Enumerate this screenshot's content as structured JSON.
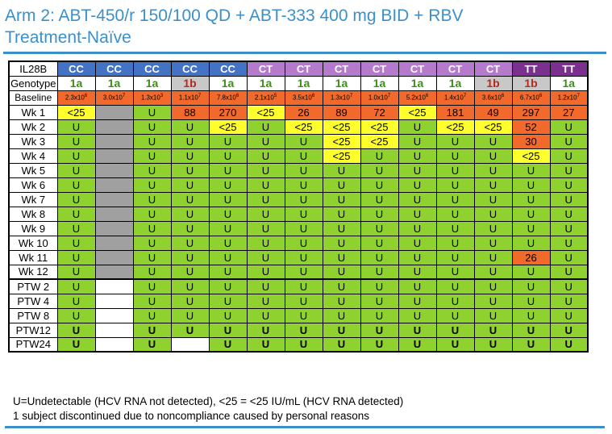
{
  "title": {
    "line1": "Arm 2: ABT-450/r 150/100 QD + ABT-333 400 mg BID + RBV",
    "line2": "Treatment-Naïve"
  },
  "colors": {
    "title_blue": "#3d8fc9",
    "cc_header": "#4472c4",
    "ct_header": "#b57acb",
    "tt_header": "#7b2f8f",
    "undetectable_green": "#8fd12e",
    "detected_yellow": "#ffff2e",
    "quantifiable_orange": "#f26a2b",
    "missing_gray": "#a0a0a0"
  },
  "table": {
    "header_rows": [
      {
        "label": "IL28B",
        "values": [
          "CC",
          "CC",
          "CC",
          "CC",
          "CC",
          "CT",
          "CT",
          "CT",
          "CT",
          "CT",
          "CT",
          "CT",
          "TT",
          "TT"
        ]
      },
      {
        "label": "Genotype",
        "values": [
          "1a",
          "1a",
          "1a",
          "1b",
          "1a",
          "1a",
          "1a",
          "1a",
          "1a",
          "1a",
          "1a",
          "1b",
          "1b",
          "1a"
        ]
      },
      {
        "label": "Baseline",
        "values": [
          {
            "m": "2.3x10",
            "e": "6"
          },
          {
            "m": "3.0x10",
            "e": "7"
          },
          {
            "m": "1.3x10",
            "e": "3"
          },
          {
            "m": "1.1x10",
            "e": "7"
          },
          {
            "m": "7.8x10",
            "e": "6"
          },
          {
            "m": "2.1x10",
            "e": "5"
          },
          {
            "m": "3.5x10",
            "e": "6"
          },
          {
            "m": "1.3x10",
            "e": "7"
          },
          {
            "m": "1.0x10",
            "e": "7"
          },
          {
            "m": "5.2x10",
            "e": "6"
          },
          {
            "m": "1.4x10",
            "e": "7"
          },
          {
            "m": "3.6x10",
            "e": "6"
          },
          {
            "m": "6.7x10",
            "e": "6"
          },
          {
            "m": "1.2x10",
            "e": "7"
          }
        ]
      }
    ],
    "rows": [
      {
        "label": "Wk 1",
        "values": [
          "<25",
          "",
          "U",
          "88",
          "270",
          "<25",
          "26",
          "89",
          "72",
          "<25",
          "181",
          "49",
          "297",
          "27"
        ]
      },
      {
        "label": "Wk 2",
        "values": [
          "U",
          "",
          "U",
          "U",
          "<25",
          "U",
          "<25",
          "<25",
          "<25",
          "U",
          "<25",
          "<25",
          "52",
          "U"
        ]
      },
      {
        "label": "Wk 3",
        "values": [
          "U",
          "",
          "U",
          "U",
          "U",
          "U",
          "U",
          "<25",
          "<25",
          "U",
          "U",
          "U",
          "30",
          "U"
        ]
      },
      {
        "label": "Wk 4",
        "values": [
          "U",
          "",
          "U",
          "U",
          "U",
          "U",
          "U",
          "<25",
          "U",
          "U",
          "U",
          "U",
          "<25",
          "U"
        ]
      },
      {
        "label": "Wk 5",
        "values": [
          "U",
          "",
          "U",
          "U",
          "U",
          "U",
          "U",
          "U",
          "U",
          "U",
          "U",
          "U",
          "U",
          "U"
        ]
      },
      {
        "label": "Wk 6",
        "values": [
          "U",
          "",
          "U",
          "U",
          "U",
          "U",
          "U",
          "U",
          "U",
          "U",
          "U",
          "U",
          "U",
          "U"
        ]
      },
      {
        "label": "Wk 7",
        "values": [
          "U",
          "",
          "U",
          "U",
          "U",
          "U",
          "U",
          "U",
          "U",
          "U",
          "U",
          "U",
          "U",
          "U"
        ]
      },
      {
        "label": "Wk 8",
        "values": [
          "U",
          "",
          "U",
          "U",
          "U",
          "U",
          "U",
          "U",
          "U",
          "U",
          "U",
          "U",
          "U",
          "U"
        ]
      },
      {
        "label": "Wk 9",
        "values": [
          "U",
          "",
          "U",
          "U",
          "U",
          "U",
          "U",
          "U",
          "U",
          "U",
          "U",
          "U",
          "U",
          "U"
        ]
      },
      {
        "label": "Wk 10",
        "values": [
          "U",
          "",
          "U",
          "U",
          "U",
          "U",
          "U",
          "U",
          "U",
          "U",
          "U",
          "U",
          "U",
          "U"
        ]
      },
      {
        "label": "Wk 11",
        "values": [
          "U",
          "",
          "U",
          "U",
          "U",
          "U",
          "U",
          "U",
          "U",
          "U",
          "U",
          "U",
          "26",
          "U"
        ]
      },
      {
        "label": "Wk 12",
        "values": [
          "U",
          "",
          "U",
          "U",
          "U",
          "U",
          "U",
          "U",
          "U",
          "U",
          "U",
          "U",
          "U",
          "U"
        ]
      },
      {
        "label": "PTW 2",
        "values": [
          "U",
          "",
          "U",
          "U",
          "U",
          "U",
          "U",
          "U",
          "U",
          "U",
          "U",
          "U",
          "U",
          "U"
        ],
        "sep": true
      },
      {
        "label": "PTW 4",
        "values": [
          "U",
          "",
          "U",
          "U",
          "U",
          "U",
          "U",
          "U",
          "U",
          "U",
          "U",
          "U",
          "U",
          "U"
        ]
      },
      {
        "label": "PTW 8",
        "values": [
          "U",
          "",
          "U",
          "U",
          "U",
          "U",
          "U",
          "U",
          "U",
          "U",
          "U",
          "U",
          "U",
          "U"
        ]
      },
      {
        "label": "PTW12",
        "values": [
          "U",
          "",
          "U",
          "U",
          "U",
          "U",
          "U",
          "U",
          "U",
          "U",
          "U",
          "U",
          "U",
          "U"
        ],
        "bold": true
      },
      {
        "label": "PTW24",
        "values": [
          "U",
          "",
          "U",
          "",
          "U",
          "U",
          "U",
          "U",
          "U",
          "U",
          "U",
          "U",
          "U",
          "U"
        ],
        "bold": true
      }
    ]
  },
  "notes": {
    "line1": "U=Undetectable (HCV RNA not detected), <25 = <25 IU/mL (HCV RNA detected)",
    "line2": "1 subject discontinued due to noncompliance caused by personal reasons"
  }
}
